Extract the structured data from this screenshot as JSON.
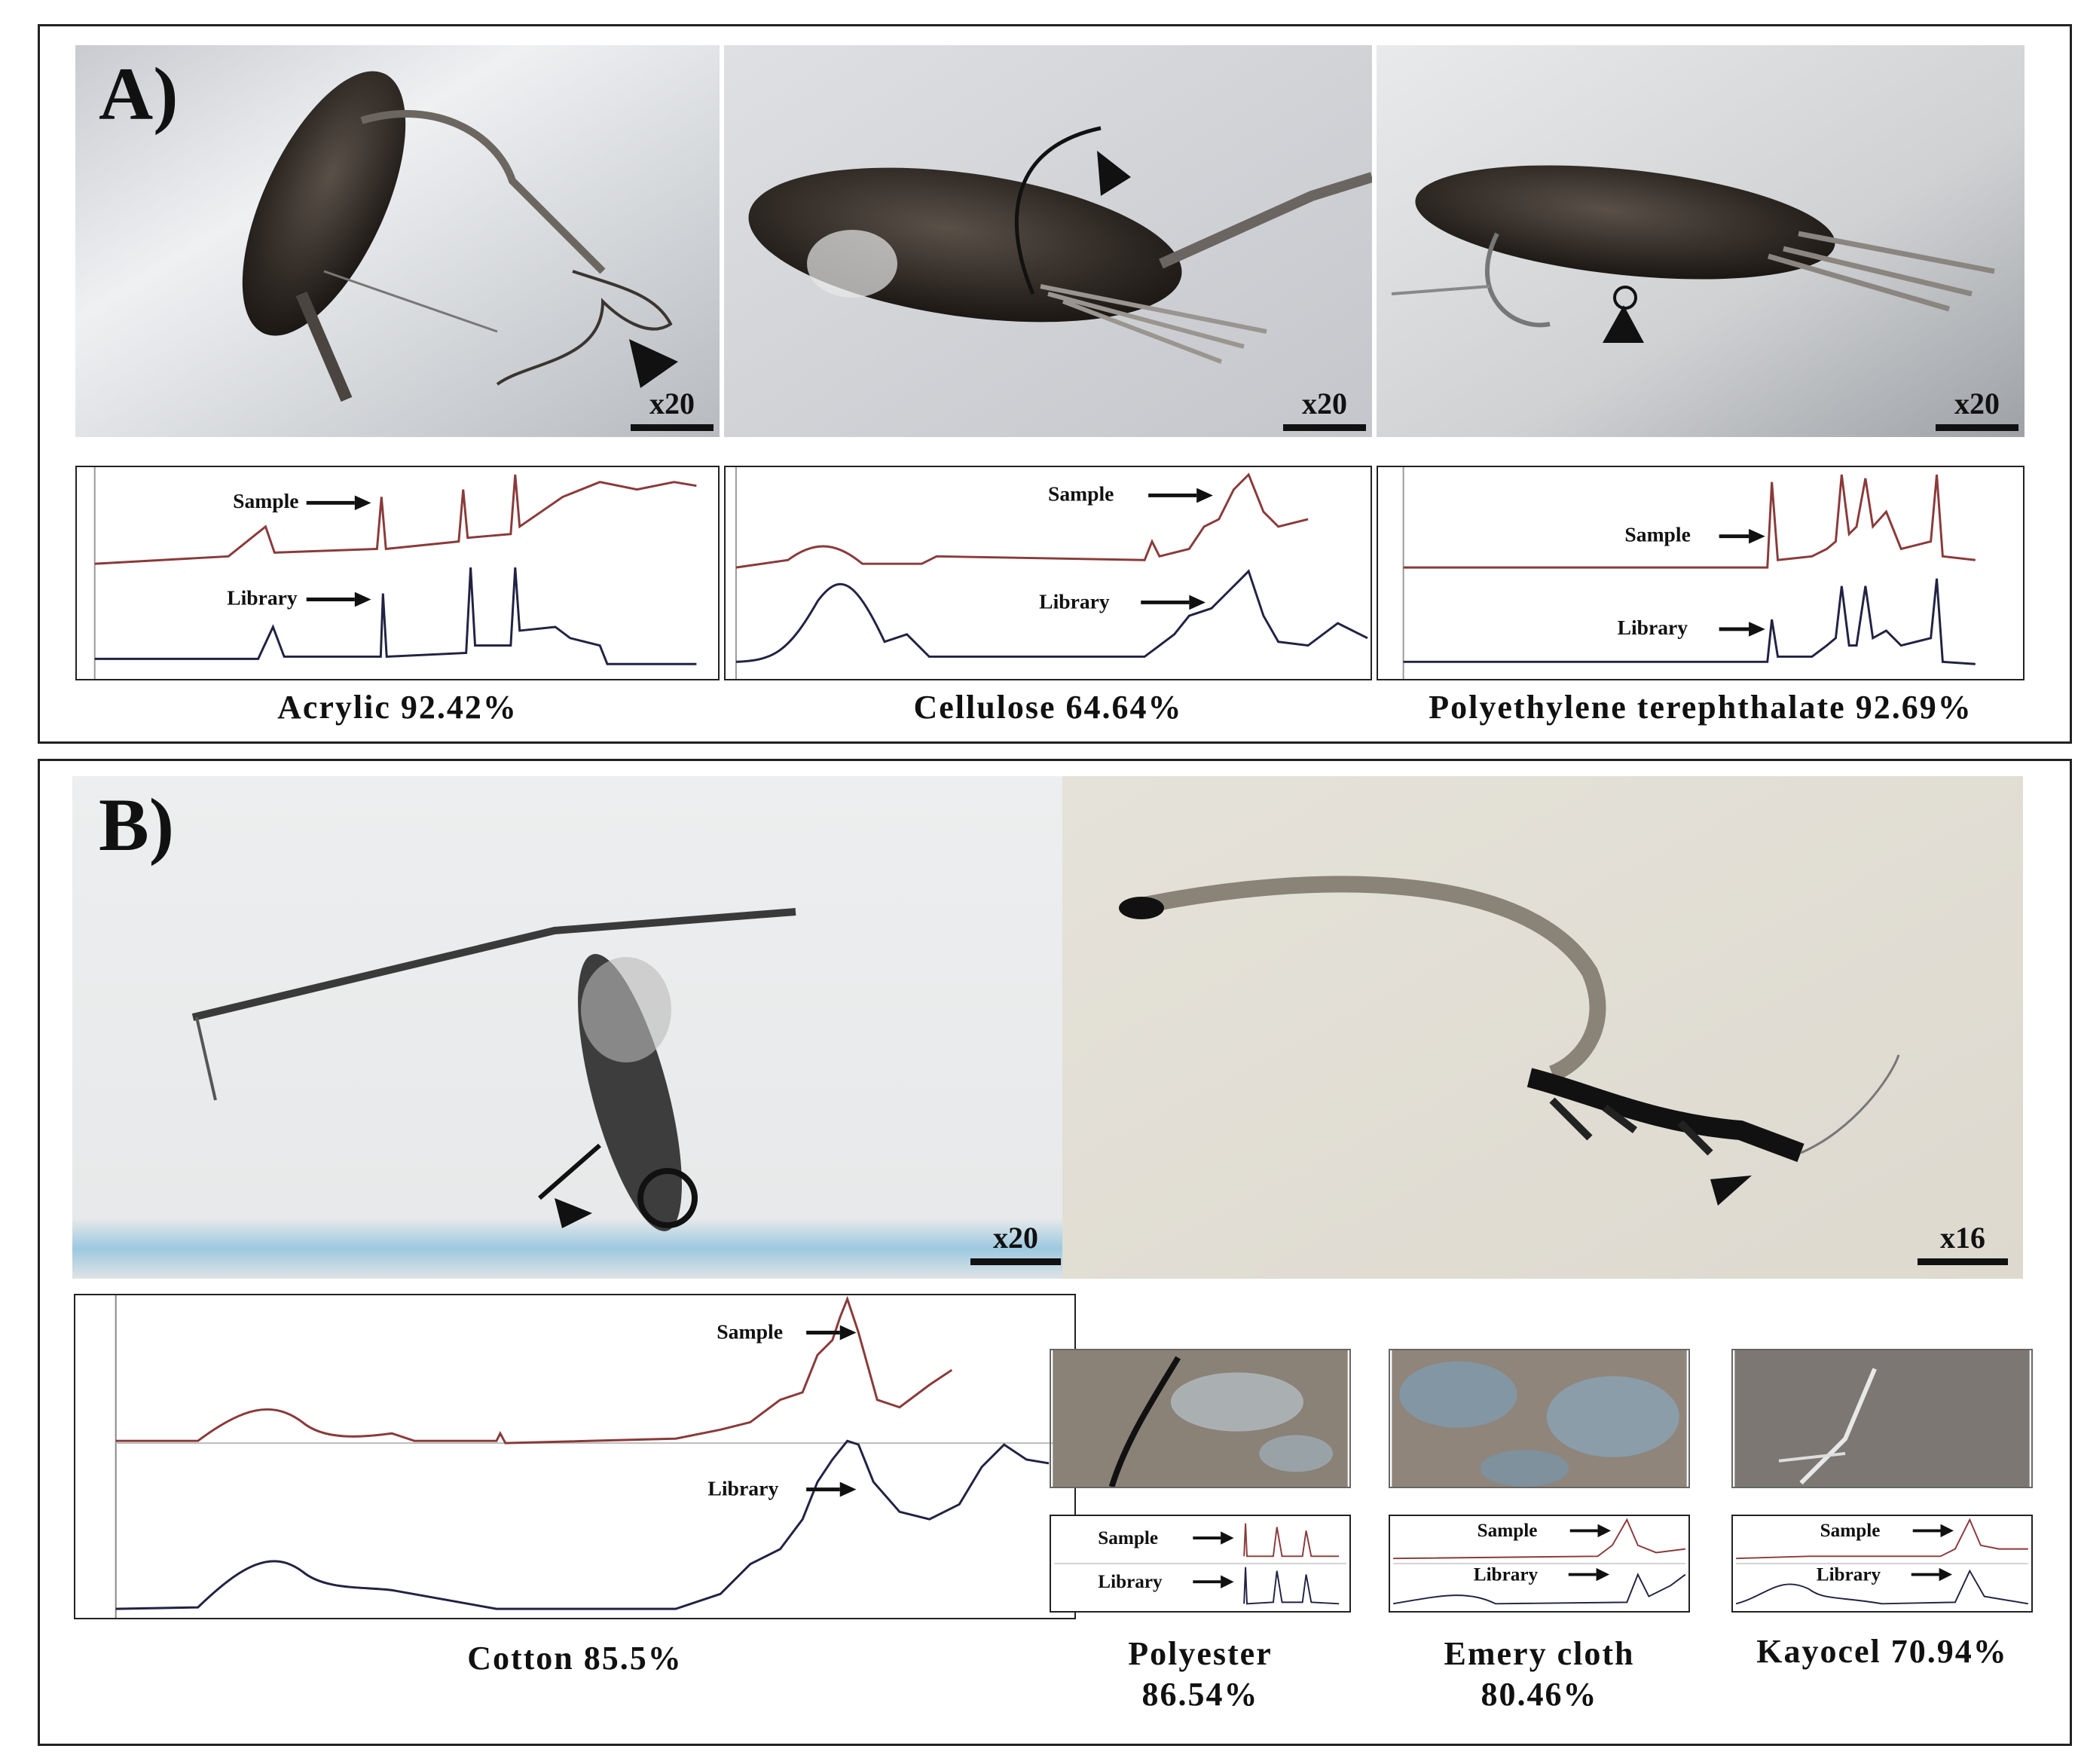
{
  "panel_a": {
    "label": "A)",
    "photos": [
      {
        "magnification": "x20"
      },
      {
        "magnification": "x20"
      },
      {
        "magnification": "x20"
      }
    ],
    "spectra": [
      {
        "sample_label": "Sample",
        "library_label": "Library",
        "caption": "Acrylic 92.42%"
      },
      {
        "sample_label": "Sample",
        "library_label": "Library",
        "caption": "Cellulose 64.64%"
      },
      {
        "sample_label": "Sample",
        "library_label": "Library",
        "caption": "Polyethylene terephthalate 92.69%"
      }
    ]
  },
  "panel_b": {
    "label": "B)",
    "photos": [
      {
        "magnification": "x20"
      },
      {
        "magnification": "x16"
      }
    ],
    "main_spectrum": {
      "sample_label": "Sample",
      "library_label": "Library",
      "caption": "Cotton 85.5%"
    },
    "small_spectra": [
      {
        "sample_label": "Sample",
        "library_label": "Library",
        "caption_line1": "Polyester",
        "caption_line2": "86.54%"
      },
      {
        "sample_label": "Sample",
        "library_label": "Library",
        "caption_line1": "Emery cloth",
        "caption_line2": "80.46%"
      },
      {
        "sample_label": "Sample",
        "library_label": "Library",
        "caption_line1": "Kayocel 70.94%",
        "caption_line2": ""
      }
    ]
  },
  "colors": {
    "border": "#222222",
    "sample_trace": "#8a3a3a",
    "library_trace": "#222244",
    "photo_bg_a": "#cfd0d4",
    "photo_bg_b": "#e6e3dc"
  },
  "icons": [
    "arrowhead-pointer-icon",
    "right-arrow-icon"
  ]
}
